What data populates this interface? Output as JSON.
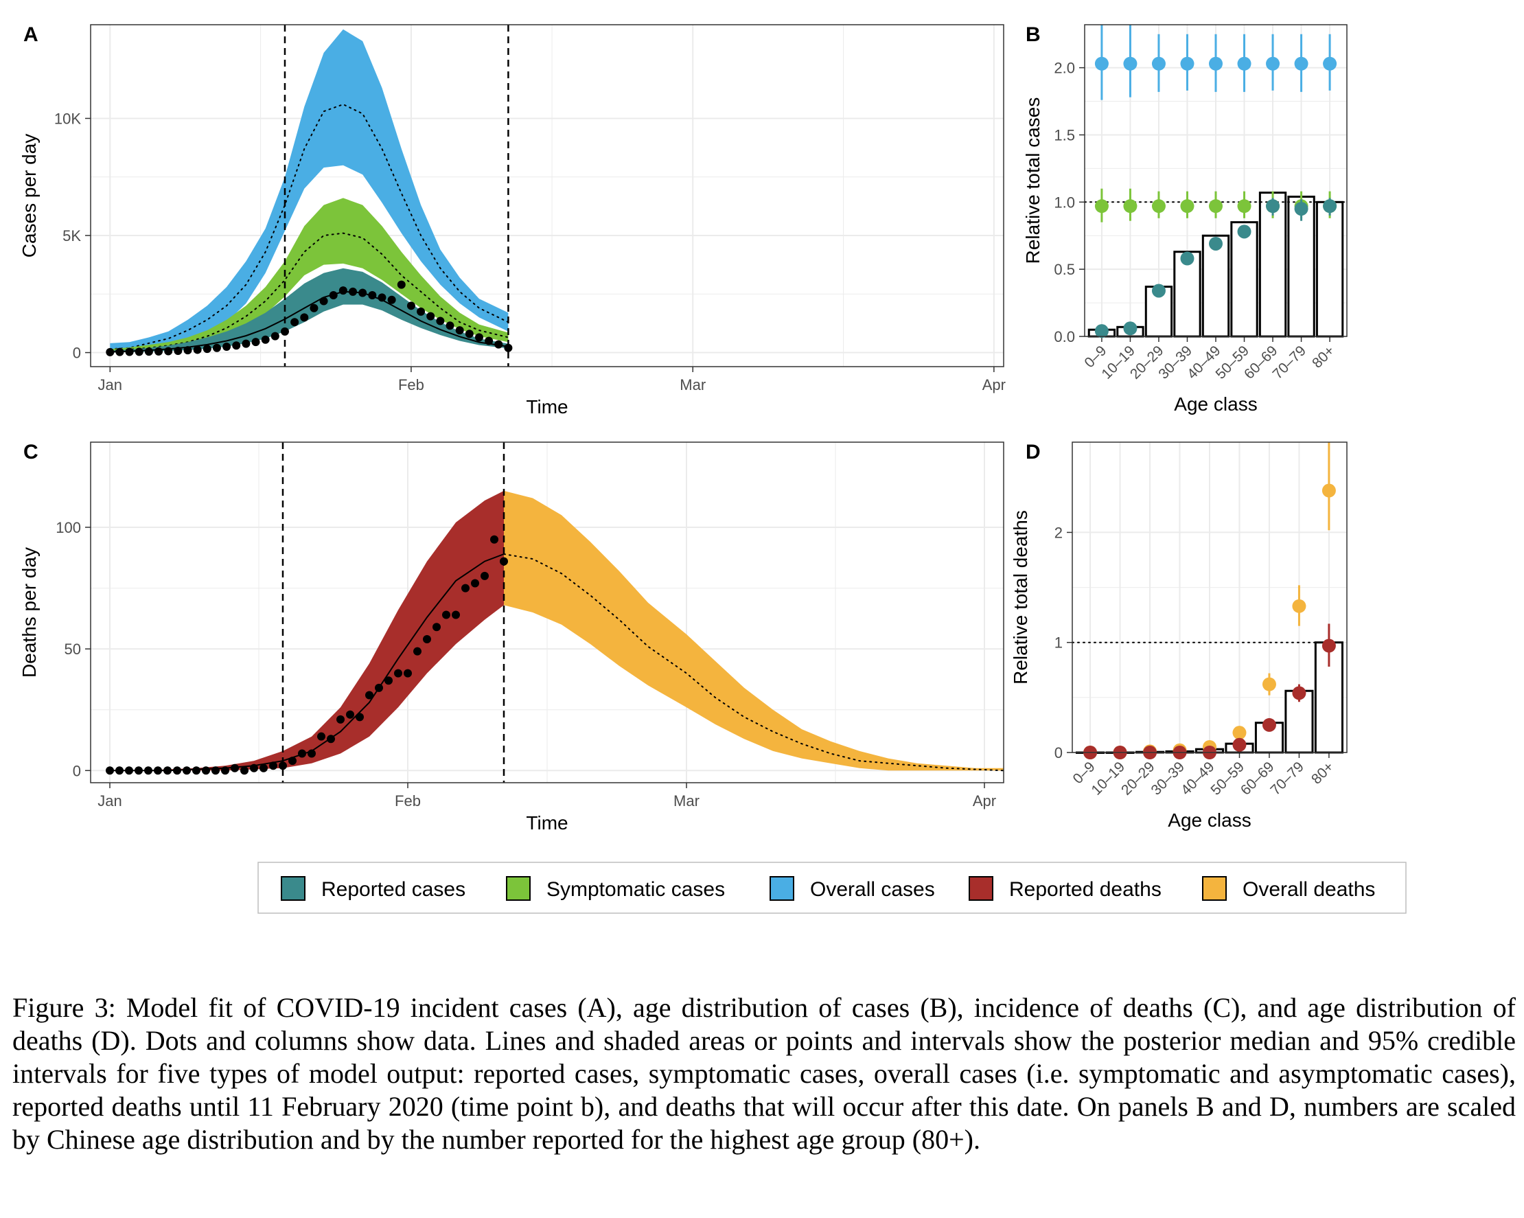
{
  "colors": {
    "reported_cases": "#3A8A8C",
    "symptomatic_cases": "#7CC43A",
    "overall_cases": "#4AAEE4",
    "reported_deaths": "#A82E2B",
    "overall_deaths": "#F4B43E",
    "grid": "#EBEBEB"
  },
  "legend": {
    "items": [
      {
        "label": "Reported cases",
        "color": "#3A8A8C"
      },
      {
        "label": "Symptomatic cases",
        "color": "#7CC43A"
      },
      {
        "label": "Overall cases",
        "color": "#4AAEE4"
      },
      {
        "label": "Reported deaths",
        "color": "#A82E2B"
      },
      {
        "label": "Overall deaths",
        "color": "#F4B43E"
      }
    ]
  },
  "chart_data": [
    {
      "panel": "A",
      "type": "area",
      "xlabel": "Time",
      "ylabel": "Cases per day",
      "x_ticks": [
        "Jan",
        "Feb",
        "Mar",
        "Apr"
      ],
      "y_ticks": [
        "0",
        "5K",
        "10K"
      ],
      "xlim": [
        "2019-12-30",
        "2020-04-02"
      ],
      "ylim": [
        -600,
        14000
      ],
      "vlines": [
        "2020-01-19",
        "2020-02-11"
      ],
      "x": [
        "2020-01-01",
        "2020-01-03",
        "2020-01-05",
        "2020-01-07",
        "2020-01-09",
        "2020-01-11",
        "2020-01-13",
        "2020-01-15",
        "2020-01-17",
        "2020-01-19",
        "2020-01-21",
        "2020-01-23",
        "2020-01-25",
        "2020-01-27",
        "2020-01-29",
        "2020-01-31",
        "2020-02-02",
        "2020-02-04",
        "2020-02-06",
        "2020-02-08",
        "2020-02-11"
      ],
      "series": [
        {
          "name": "Overall cases",
          "lower": [
            0,
            100,
            180,
            300,
            500,
            800,
            1300,
            2100,
            3400,
            5200,
            7000,
            7900,
            8000,
            7600,
            6400,
            5100,
            3900,
            2900,
            2100,
            1500,
            900
          ],
          "upper": [
            400,
            450,
            650,
            900,
            1400,
            2000,
            2800,
            3900,
            5300,
            7500,
            10500,
            12800,
            13800,
            13300,
            11300,
            8700,
            6300,
            4400,
            3200,
            2300,
            1700
          ],
          "median": [
            150,
            200,
            400,
            600,
            950,
            1400,
            2000,
            2900,
            4300,
            6300,
            8700,
            10300,
            10600,
            10200,
            8700,
            6800,
            5000,
            3600,
            2600,
            1900,
            1300
          ]
        },
        {
          "name": "Symptomatic cases",
          "lower": [
            0,
            60,
            110,
            190,
            300,
            480,
            740,
            1150,
            1650,
            2400,
            3300,
            3750,
            3800,
            3600,
            3100,
            2500,
            1900,
            1400,
            1000,
            700,
            450
          ],
          "upper": [
            150,
            220,
            330,
            450,
            650,
            950,
            1400,
            2000,
            2800,
            3900,
            5400,
            6300,
            6600,
            6300,
            5400,
            4300,
            3300,
            2400,
            1700,
            1200,
            850
          ],
          "median": [
            80,
            130,
            200,
            300,
            450,
            700,
            1050,
            1550,
            2200,
            3100,
            4300,
            5000,
            5100,
            4900,
            4200,
            3300,
            2600,
            1900,
            1300,
            950,
            650
          ]
        },
        {
          "name": "Reported cases",
          "lower": [
            0,
            20,
            40,
            70,
            110,
            170,
            260,
            400,
            600,
            900,
            1300,
            1750,
            2050,
            2050,
            1800,
            1400,
            1050,
            750,
            500,
            320,
            180
          ],
          "upper": [
            80,
            130,
            200,
            300,
            450,
            650,
            900,
            1250,
            1700,
            2300,
            2950,
            3400,
            3600,
            3450,
            3000,
            2400,
            1800,
            1300,
            900,
            600,
            380
          ],
          "median": [
            30,
            60,
            100,
            150,
            230,
            340,
            500,
            720,
            1020,
            1430,
            1900,
            2360,
            2600,
            2560,
            2250,
            1800,
            1350,
            980,
            680,
            440,
            260
          ]
        }
      ],
      "points": {
        "name": "Reported cases data",
        "x": [
          "2020-01-01",
          "2020-01-02",
          "2020-01-03",
          "2020-01-04",
          "2020-01-05",
          "2020-01-06",
          "2020-01-07",
          "2020-01-08",
          "2020-01-09",
          "2020-01-10",
          "2020-01-11",
          "2020-01-12",
          "2020-01-13",
          "2020-01-14",
          "2020-01-15",
          "2020-01-16",
          "2020-01-17",
          "2020-01-18",
          "2020-01-19",
          "2020-01-20",
          "2020-01-21",
          "2020-01-22",
          "2020-01-23",
          "2020-01-24",
          "2020-01-25",
          "2020-01-26",
          "2020-01-27",
          "2020-01-28",
          "2020-01-29",
          "2020-01-30",
          "2020-01-31",
          "2020-02-01",
          "2020-02-02",
          "2020-02-03",
          "2020-02-04",
          "2020-02-05",
          "2020-02-06",
          "2020-02-07",
          "2020-02-08",
          "2020-02-09",
          "2020-02-10",
          "2020-02-11"
        ],
        "y": [
          20,
          25,
          30,
          35,
          40,
          50,
          60,
          75,
          100,
          120,
          160,
          200,
          250,
          300,
          380,
          450,
          550,
          700,
          900,
          1300,
          1500,
          1900,
          2200,
          2450,
          2650,
          2600,
          2550,
          2450,
          2350,
          2250,
          2900,
          2000,
          1750,
          1550,
          1350,
          1150,
          950,
          800,
          650,
          500,
          350,
          200
        ]
      }
    },
    {
      "panel": "B",
      "type": "bar",
      "xlabel": "Age class",
      "ylabel": "Relative total cases",
      "categories": [
        "0–9",
        "10–19",
        "20–29",
        "30–39",
        "40–49",
        "50–59",
        "60–69",
        "70–79",
        "80+"
      ],
      "y_ticks": [
        "0.0",
        "0.5",
        "1.0",
        "1.5",
        "2.0"
      ],
      "ylim": [
        0,
        2.32
      ],
      "hline": 1.0,
      "bars": [
        0.05,
        0.07,
        0.37,
        0.63,
        0.75,
        0.85,
        1.07,
        1.04,
        1.0
      ],
      "series": [
        {
          "name": "Overall cases",
          "values": [
            2.03,
            2.03,
            2.03,
            2.03,
            2.03,
            2.03,
            2.03,
            2.03,
            2.03
          ],
          "lower": [
            1.76,
            1.78,
            1.82,
            1.83,
            1.82,
            1.82,
            1.83,
            1.82,
            1.83
          ],
          "upper": [
            2.35,
            2.32,
            2.25,
            2.25,
            2.25,
            2.25,
            2.25,
            2.25,
            2.25
          ]
        },
        {
          "name": "Symptomatic cases",
          "values": [
            0.97,
            0.97,
            0.97,
            0.97,
            0.97,
            0.97,
            0.97,
            0.97,
            0.97
          ],
          "lower": [
            0.85,
            0.86,
            0.88,
            0.88,
            0.88,
            0.88,
            0.88,
            0.88,
            0.88
          ],
          "upper": [
            1.1,
            1.1,
            1.08,
            1.08,
            1.08,
            1.08,
            1.08,
            1.08,
            1.08
          ]
        },
        {
          "name": "Reported cases",
          "values": [
            0.04,
            0.06,
            0.34,
            0.58,
            0.69,
            0.78,
            0.97,
            0.95,
            0.97
          ],
          "lower": [
            0.03,
            0.05,
            0.31,
            0.55,
            0.65,
            0.73,
            0.9,
            0.86,
            0.9
          ],
          "upper": [
            0.05,
            0.07,
            0.37,
            0.61,
            0.73,
            0.83,
            1.03,
            1.02,
            1.03
          ]
        }
      ]
    },
    {
      "panel": "C",
      "type": "area",
      "xlabel": "Time",
      "ylabel": "Deaths per day",
      "x_ticks": [
        "Jan",
        "Feb",
        "Mar",
        "Apr"
      ],
      "y_ticks": [
        "0",
        "50",
        "100"
      ],
      "xlim": [
        "2019-12-30",
        "2020-04-03"
      ],
      "ylim": [
        -5,
        135
      ],
      "vlines": [
        "2020-01-19",
        "2020-02-11"
      ],
      "x": [
        "2020-01-01",
        "2020-01-04",
        "2020-01-07",
        "2020-01-10",
        "2020-01-13",
        "2020-01-16",
        "2020-01-19",
        "2020-01-22",
        "2020-01-25",
        "2020-01-28",
        "2020-01-31",
        "2020-02-03",
        "2020-02-06",
        "2020-02-09",
        "2020-02-11",
        "2020-02-14",
        "2020-02-17",
        "2020-02-20",
        "2020-02-23",
        "2020-02-26",
        "2020-03-01",
        "2020-03-04",
        "2020-03-07",
        "2020-03-10",
        "2020-03-13",
        "2020-03-16",
        "2020-03-19",
        "2020-03-22",
        "2020-03-25",
        "2020-03-28",
        "2020-03-31",
        "2020-04-03"
      ],
      "series": [
        {
          "name": "Reported deaths",
          "lower": [
            0,
            0,
            0,
            0,
            0,
            0.5,
            1,
            3,
            7,
            14,
            26,
            40,
            52,
            62,
            68,
            null,
            null,
            null,
            null,
            null,
            null,
            null,
            null,
            null,
            null,
            null,
            null,
            null,
            null,
            null,
            null,
            null
          ],
          "upper": [
            0,
            0,
            0.5,
            1,
            2,
            4,
            8,
            14,
            26,
            44,
            66,
            86,
            102,
            111,
            115,
            null,
            null,
            null,
            null,
            null,
            null,
            null,
            null,
            null,
            null,
            null,
            null,
            null,
            null,
            null,
            null,
            null
          ],
          "median": [
            0,
            0,
            0,
            0.5,
            1,
            2,
            4,
            8,
            16,
            28,
            46,
            63,
            78,
            86,
            89,
            null,
            null,
            null,
            null,
            null,
            null,
            null,
            null,
            null,
            null,
            null,
            null,
            null,
            null,
            null,
            null,
            null
          ]
        },
        {
          "name": "Overall deaths",
          "lower": [
            null,
            null,
            null,
            null,
            null,
            null,
            null,
            null,
            null,
            null,
            null,
            null,
            null,
            null,
            68,
            65,
            60,
            52,
            43,
            35,
            26,
            19,
            13,
            8,
            5,
            3,
            1,
            0,
            0,
            0,
            0,
            0
          ],
          "upper": [
            null,
            null,
            null,
            null,
            null,
            null,
            null,
            null,
            null,
            null,
            null,
            null,
            null,
            null,
            115,
            112,
            105,
            94,
            82,
            69,
            56,
            45,
            34,
            25,
            17,
            12,
            8,
            5,
            3,
            2,
            1,
            1
          ],
          "median": [
            null,
            null,
            null,
            null,
            null,
            null,
            null,
            null,
            null,
            null,
            null,
            null,
            null,
            null,
            89,
            87,
            81,
            72,
            62,
            51,
            40,
            30,
            22,
            16,
            11,
            7,
            4,
            3,
            2,
            1,
            0.5,
            0
          ]
        }
      ],
      "points": {
        "name": "Reported deaths data",
        "x": [
          "2020-01-01",
          "2020-01-02",
          "2020-01-03",
          "2020-01-04",
          "2020-01-05",
          "2020-01-06",
          "2020-01-07",
          "2020-01-08",
          "2020-01-09",
          "2020-01-10",
          "2020-01-11",
          "2020-01-12",
          "2020-01-13",
          "2020-01-14",
          "2020-01-15",
          "2020-01-16",
          "2020-01-17",
          "2020-01-18",
          "2020-01-19",
          "2020-01-20",
          "2020-01-21",
          "2020-01-22",
          "2020-01-23",
          "2020-01-24",
          "2020-01-25",
          "2020-01-26",
          "2020-01-27",
          "2020-01-28",
          "2020-01-29",
          "2020-01-30",
          "2020-01-31",
          "2020-02-01",
          "2020-02-02",
          "2020-02-03",
          "2020-02-04",
          "2020-02-05",
          "2020-02-06",
          "2020-02-07",
          "2020-02-08",
          "2020-02-09",
          "2020-02-10",
          "2020-02-11"
        ],
        "y": [
          0,
          0,
          0,
          0,
          0,
          0,
          0,
          0,
          0,
          0,
          0,
          0,
          0,
          1,
          0,
          1,
          1,
          2,
          2,
          4,
          7,
          7,
          14,
          13,
          21,
          23,
          22,
          31,
          34,
          37,
          40,
          40,
          49,
          54,
          59,
          64,
          64,
          75,
          77,
          80,
          95,
          86
        ]
      }
    },
    {
      "panel": "D",
      "type": "bar",
      "xlabel": "Age class",
      "ylabel": "Relative total deaths",
      "categories": [
        "0–9",
        "10–19",
        "20–29",
        "30–39",
        "40–49",
        "50–59",
        "60–69",
        "70–79",
        "80+"
      ],
      "y_ticks": [
        "0",
        "1",
        "2"
      ],
      "ylim": [
        0,
        2.82
      ],
      "hline": 1.0,
      "bars": [
        0.0,
        0.0,
        0.005,
        0.01,
        0.03,
        0.08,
        0.27,
        0.56,
        1.0
      ],
      "series": [
        {
          "name": "Overall deaths",
          "values": [
            0.0,
            0.0,
            0.01,
            0.02,
            0.05,
            0.18,
            0.62,
            1.33,
            2.38
          ],
          "lower": [
            0.0,
            0.0,
            0.0,
            0.0,
            0.03,
            0.12,
            0.52,
            1.15,
            2.02
          ],
          "upper": [
            0.0,
            0.0,
            0.02,
            0.04,
            0.08,
            0.24,
            0.72,
            1.52,
            2.82
          ]
        },
        {
          "name": "Reported deaths",
          "values": [
            0.0,
            0.0,
            0.0,
            0.0,
            0.0,
            0.07,
            0.25,
            0.54,
            0.97
          ],
          "lower": [
            0.0,
            0.0,
            0.0,
            0.0,
            0.0,
            0.04,
            0.21,
            0.46,
            0.78
          ],
          "upper": [
            0.0,
            0.0,
            0.0,
            0.0,
            0.0,
            0.1,
            0.29,
            0.62,
            1.17
          ]
        }
      ]
    }
  ],
  "caption": "Figure 3: Model fit of COVID-19 incident cases (A), age distribution of cases (B), incidence of deaths (C), and age distribution of deaths (D). Dots and columns show data. Lines and shaded areas or points and intervals show the posterior median and 95% credible intervals for five types of model output: reported cases, symptomatic cases, overall cases (i.e. symptomatic and asymptomatic cases), reported deaths until 11 February 2020 (time point b), and deaths that will occur after this date. On panels B and D, numbers are scaled by Chinese age distribution and by the number reported for the highest age group (80+)."
}
